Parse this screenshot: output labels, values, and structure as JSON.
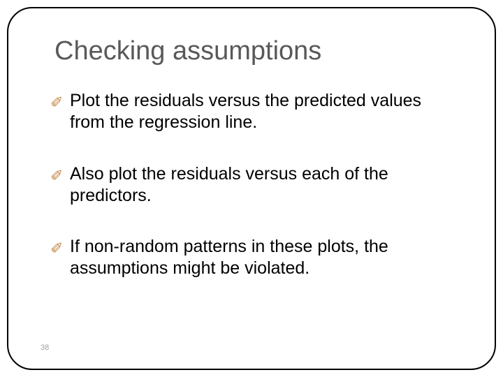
{
  "slide": {
    "title": "Checking assumptions",
    "bullets": [
      {
        "text": "Plot the residuals versus the predicted values from the regression line."
      },
      {
        "text": "Also plot the residuals versus each of the predictors."
      },
      {
        "text": "If non-random patterns in these plots, the assumptions might be violated."
      }
    ],
    "page_number": "38",
    "colors": {
      "title_color": "#595959",
      "bullet_glyph_color": "#c38a4a",
      "body_text_color": "#000000",
      "border_color": "#000000",
      "background": "#ffffff"
    },
    "typography": {
      "title_fontsize": 38,
      "body_fontsize": 25,
      "font_family": "Arial"
    },
    "layout": {
      "border_radius": 36,
      "bullet_glyph": "✐"
    }
  }
}
